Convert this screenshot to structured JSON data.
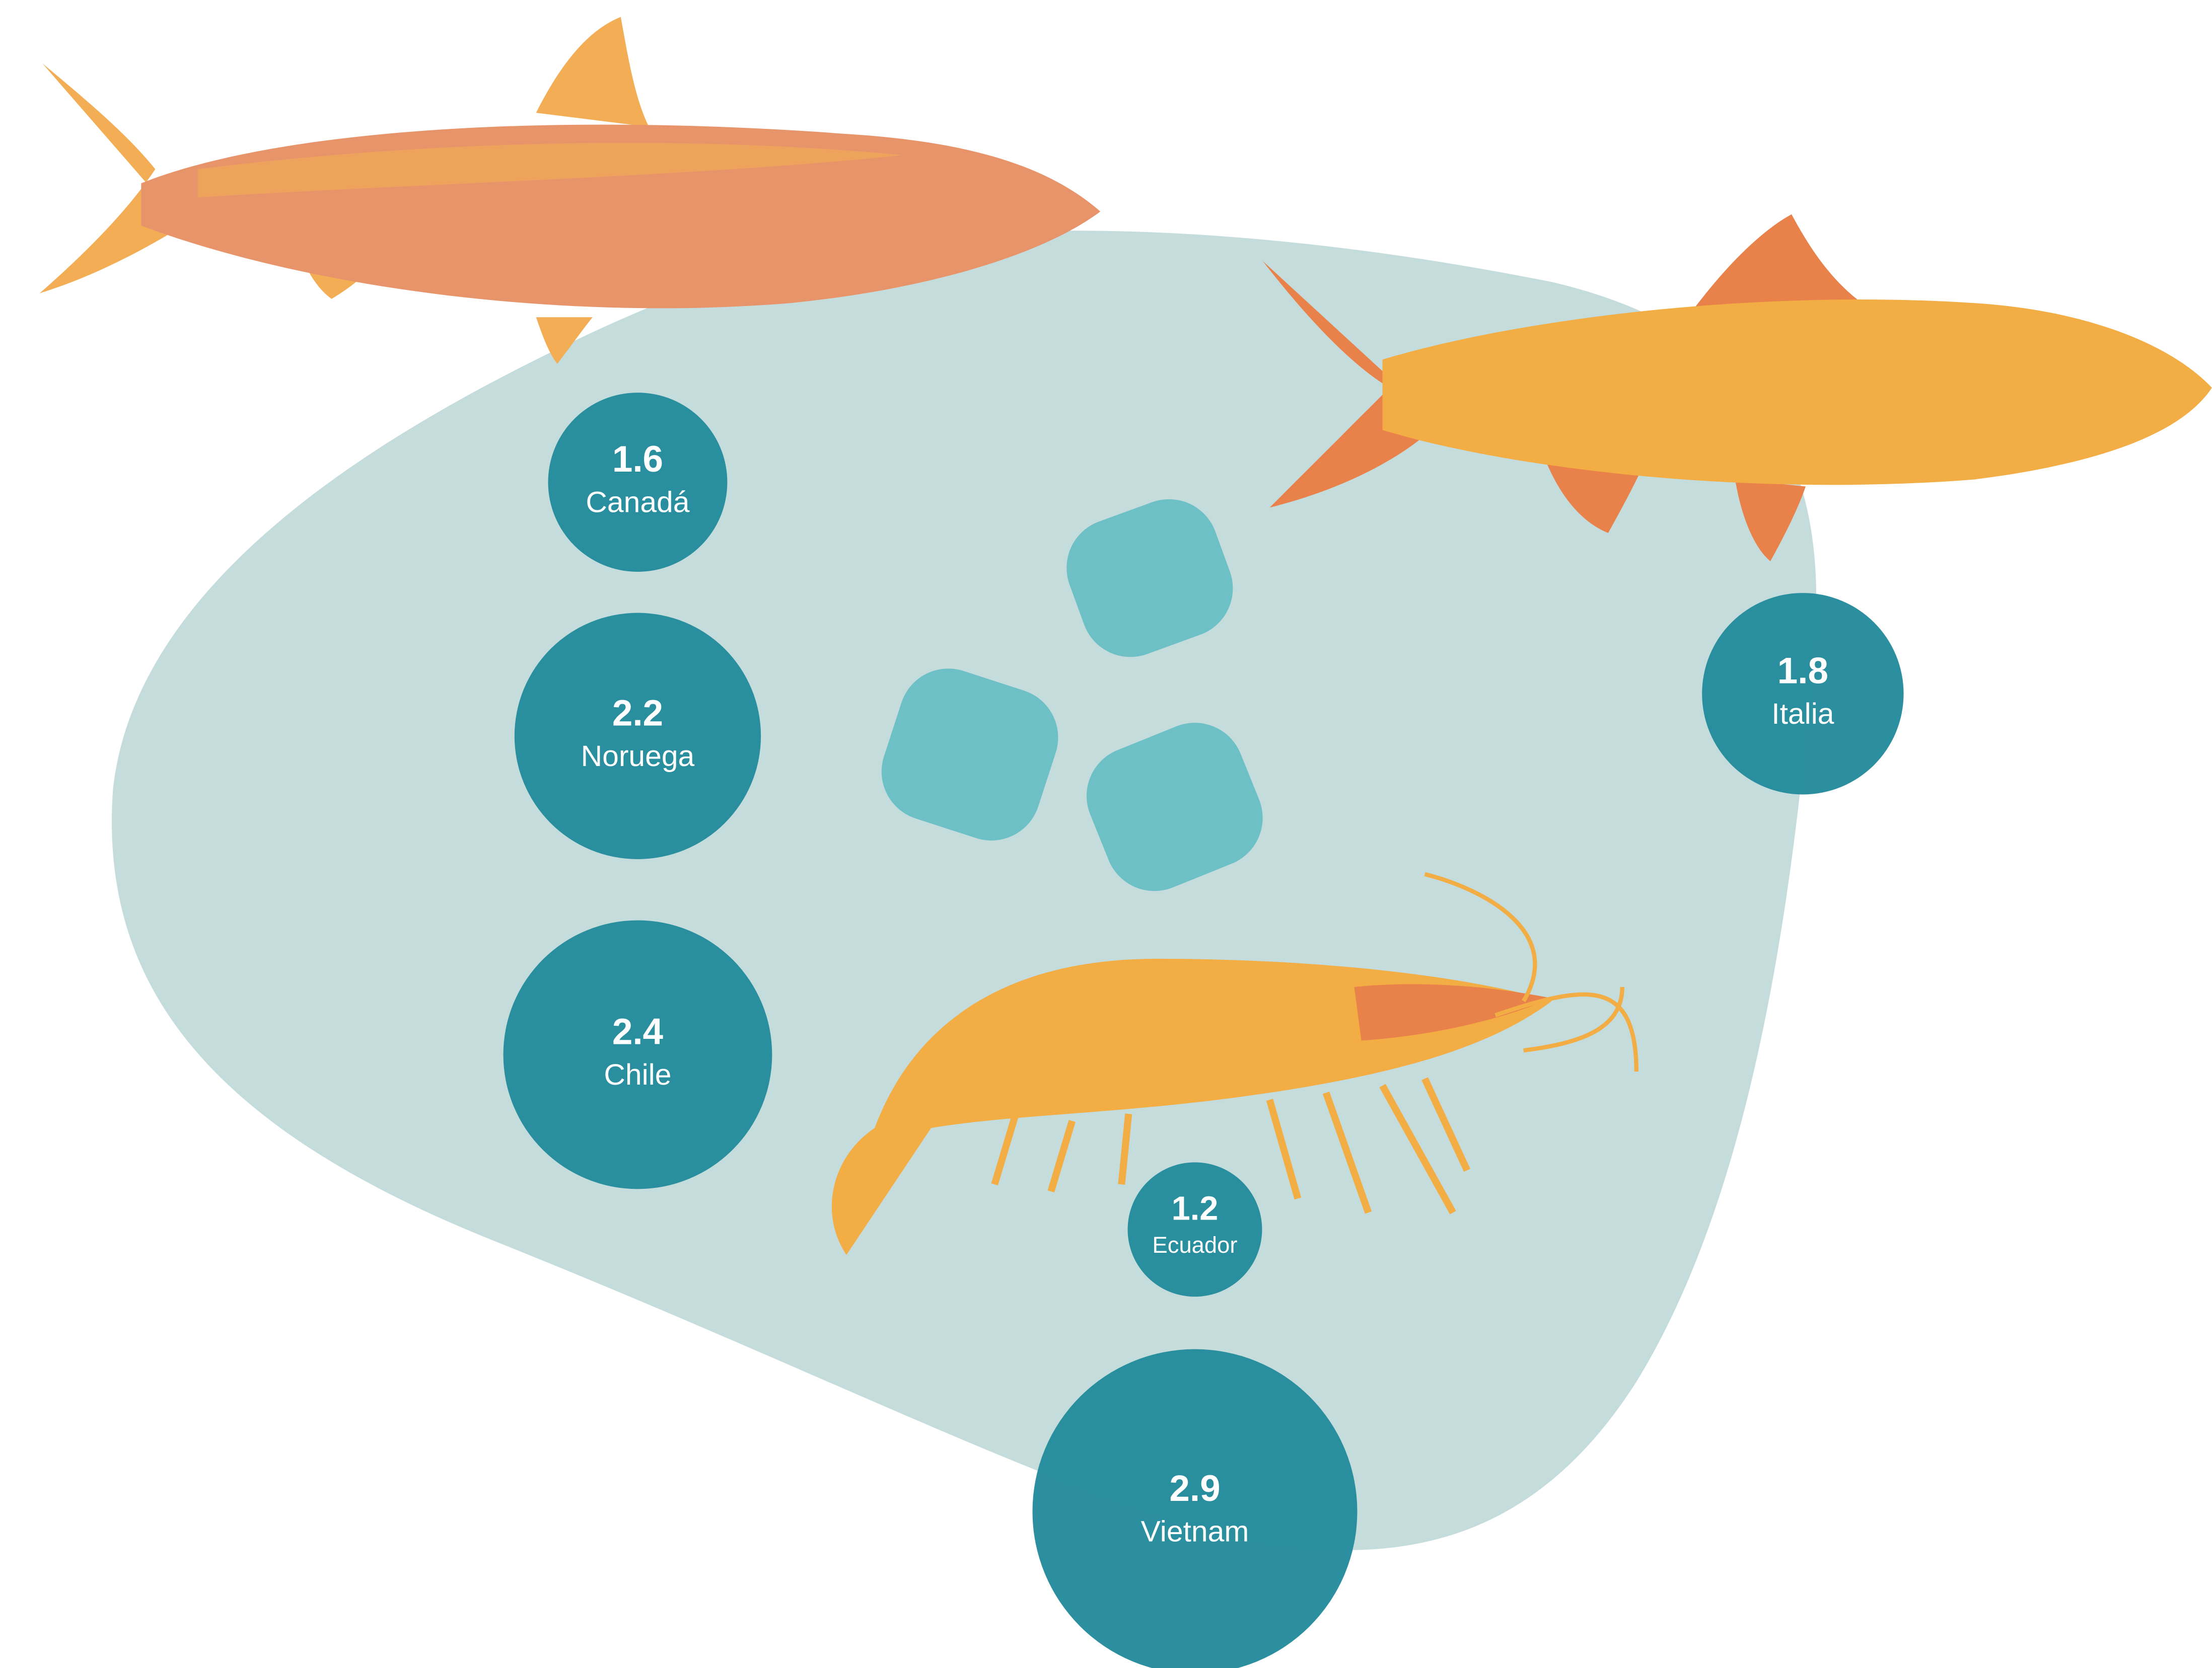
{
  "chart_data": {
    "type": "bubble",
    "categories": [
      "Canadá",
      "Noruega",
      "Chile",
      "Ecuador",
      "Vietnam",
      "Italia"
    ],
    "values": [
      1.6,
      2.2,
      2.4,
      1.2,
      2.9,
      1.8
    ],
    "color": "#21899a"
  }
}
